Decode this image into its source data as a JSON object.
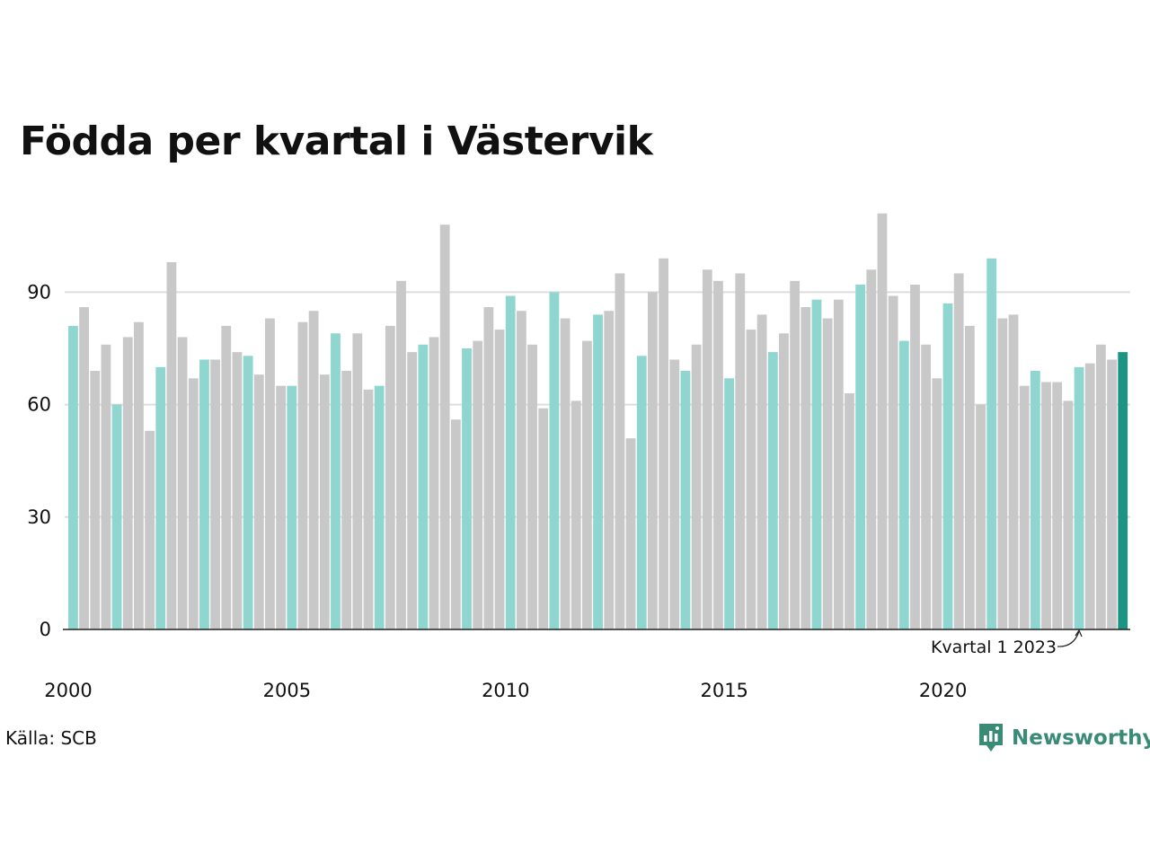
{
  "title": "Födda per kvartal i Västervik",
  "source": "Källa: SCB",
  "brand": {
    "name": "Newsworthy",
    "icon": "newsworthy-logo-icon"
  },
  "colors": {
    "gray": "#c8c8c8",
    "q1": "#8ed6cf",
    "latest": "#1b9483",
    "grid": "#dddddd",
    "axis": "#222222",
    "brand": "#3a8a78"
  },
  "chart_data": {
    "type": "bar",
    "title": "Födda per kvartal i Västervik",
    "xlabel": "",
    "ylabel": "",
    "ylim": [
      0,
      115
    ],
    "yticks": [
      0,
      30,
      60,
      90
    ],
    "grid": true,
    "x_tick_labels": [
      "2000",
      "2005",
      "2010",
      "2015",
      "2020"
    ],
    "highlight": "Kvartal 1 bars are teal; the latest quarter is dark teal",
    "annotation": {
      "text": "Kvartal 1 2023",
      "target": "2023 Q1"
    },
    "categories": [
      "2000 Q1",
      "2000 Q2",
      "2000 Q3",
      "2000 Q4",
      "2001 Q1",
      "2001 Q2",
      "2001 Q3",
      "2001 Q4",
      "2002 Q1",
      "2002 Q2",
      "2002 Q3",
      "2002 Q4",
      "2003 Q1",
      "2003 Q2",
      "2003 Q3",
      "2003 Q4",
      "2004 Q1",
      "2004 Q2",
      "2004 Q3",
      "2004 Q4",
      "2005 Q1",
      "2005 Q2",
      "2005 Q3",
      "2005 Q4",
      "2006 Q1",
      "2006 Q2",
      "2006 Q3",
      "2006 Q4",
      "2007 Q1",
      "2007 Q2",
      "2007 Q3",
      "2007 Q4",
      "2008 Q1",
      "2008 Q2",
      "2008 Q3",
      "2008 Q4",
      "2009 Q1",
      "2009 Q2",
      "2009 Q3",
      "2009 Q4",
      "2010 Q1",
      "2010 Q2",
      "2010 Q3",
      "2010 Q4",
      "2011 Q1",
      "2011 Q2",
      "2011 Q3",
      "2011 Q4",
      "2012 Q1",
      "2012 Q2",
      "2012 Q3",
      "2012 Q4",
      "2013 Q1",
      "2013 Q2",
      "2013 Q3",
      "2013 Q4",
      "2014 Q1",
      "2014 Q2",
      "2014 Q3",
      "2014 Q4",
      "2015 Q1",
      "2015 Q2",
      "2015 Q3",
      "2015 Q4",
      "2016 Q1",
      "2016 Q2",
      "2016 Q3",
      "2016 Q4",
      "2017 Q1",
      "2017 Q2",
      "2017 Q3",
      "2017 Q4",
      "2018 Q1",
      "2018 Q2",
      "2018 Q3",
      "2018 Q4",
      "2019 Q1",
      "2019 Q2",
      "2019 Q3",
      "2019 Q4",
      "2020 Q1",
      "2020 Q2",
      "2020 Q3",
      "2020 Q4",
      "2021 Q1",
      "2021 Q2",
      "2021 Q3",
      "2021 Q4",
      "2022 Q1",
      "2022 Q2",
      "2022 Q3",
      "2022 Q4",
      "2023 Q1",
      "2023 Q2",
      "2023 Q3",
      "2023 Q4",
      "2024 Q1"
    ],
    "values": [
      81,
      86,
      69,
      76,
      60,
      78,
      82,
      53,
      70,
      98,
      78,
      67,
      72,
      72,
      81,
      74,
      73,
      68,
      83,
      65,
      65,
      82,
      85,
      68,
      79,
      69,
      79,
      64,
      65,
      81,
      93,
      74,
      76,
      78,
      108,
      56,
      75,
      77,
      86,
      80,
      89,
      85,
      76,
      59,
      90,
      83,
      61,
      77,
      84,
      85,
      95,
      51,
      73,
      90,
      99,
      72,
      69,
      76,
      96,
      93,
      67,
      95,
      80,
      84,
      74,
      79,
      93,
      86,
      88,
      83,
      88,
      63,
      92,
      96,
      111,
      89,
      77,
      92,
      76,
      67,
      87,
      95,
      81,
      60,
      99,
      83,
      84,
      65,
      69,
      66,
      66,
      61,
      70,
      71,
      76,
      72,
      74
    ]
  }
}
